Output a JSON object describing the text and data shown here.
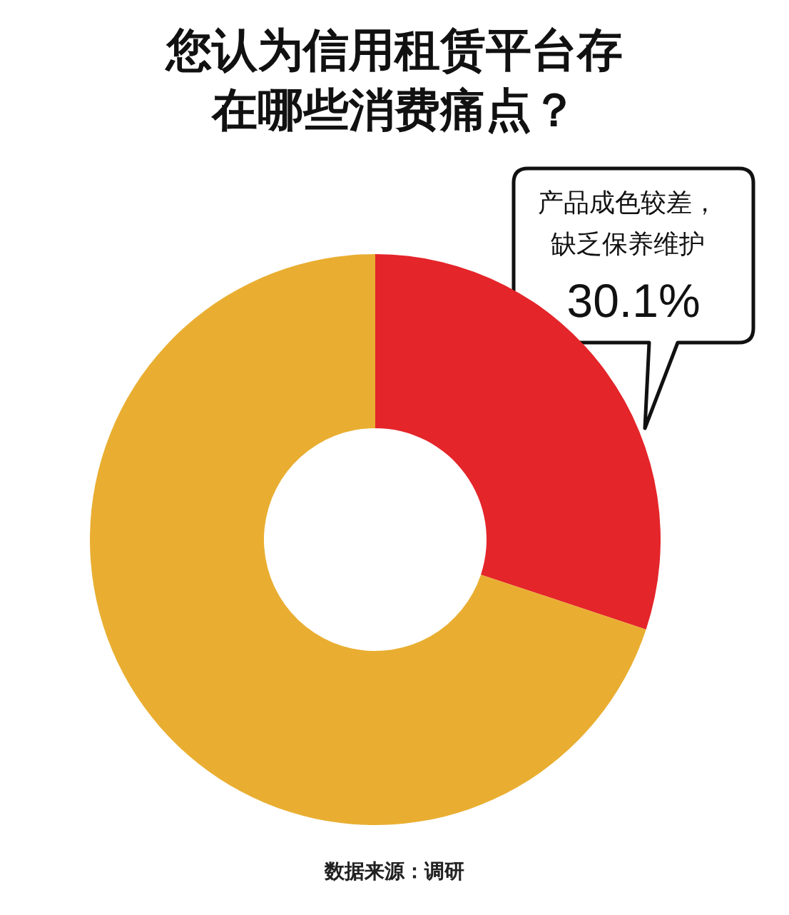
{
  "chart_data": {
    "type": "donut",
    "title": "您认为信用租赁平台存在哪些消费痛点？",
    "categories": [
      "产品成色较差，缺乏保养维护",
      null
    ],
    "values": [
      30.1,
      69.9
    ],
    "colors": [
      "#e4252a",
      "#e9ae31"
    ],
    "value_labels": [
      "30.1%",
      null
    ],
    "annotations": [
      "数据来源：调研"
    ]
  }
}
